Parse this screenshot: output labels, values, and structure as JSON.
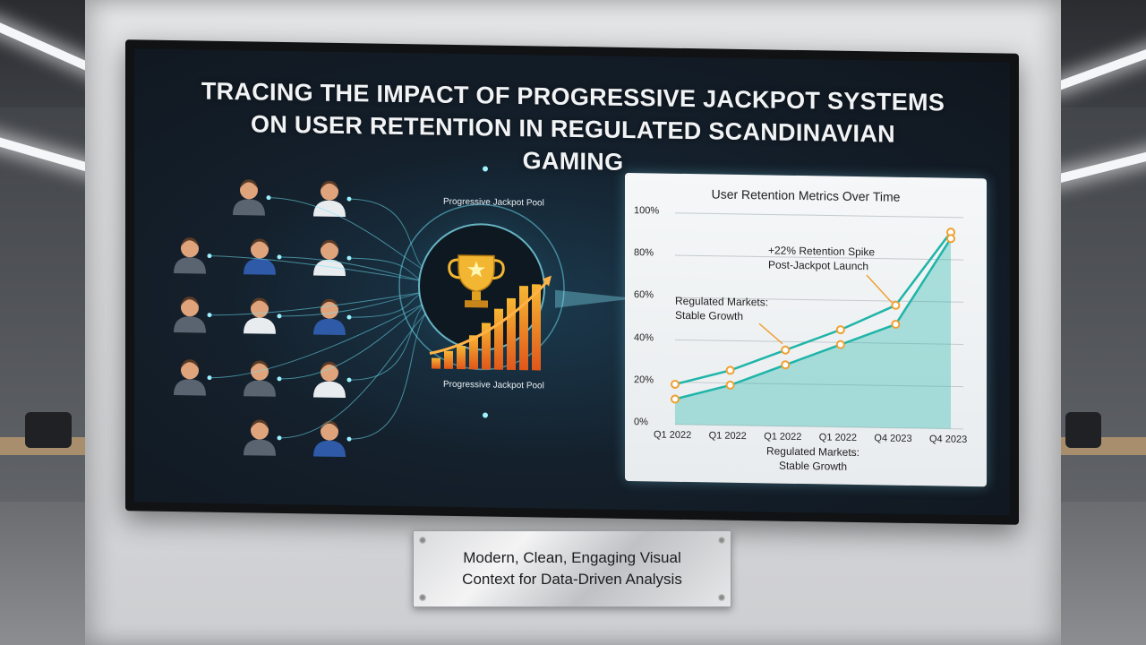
{
  "screen": {
    "title_line1": "TRACING THE IMPACT OF PROGRESSIVE JACKPOT SYSTEMS",
    "title_line2": "ON USER RETENTION IN REGULATED SCANDINAVIAN GAMING",
    "pool_label_top": "Progressive Jackpot Pool",
    "pool_label_bottom": "Progressive Jackpot Pool",
    "trophy_icon": "trophy-icon",
    "bars_icon": "rising-bars-icon",
    "user_icon": "user-avatar-icon"
  },
  "plaque": {
    "line1": "Modern, Clean, Engaging Visual",
    "line2": "Context for Data-Driven Analysis"
  },
  "colors": {
    "accent_teal": "#1fb5a8",
    "marker_orange": "#f0a030",
    "glow_cyan": "#6fe3f5"
  },
  "chart_data": {
    "type": "area",
    "title": "User Retention Metrics Over Time",
    "y_ticks": [
      "100%",
      "80%",
      "60%",
      "40%",
      "20%",
      "0%"
    ],
    "ylim": [
      0,
      100
    ],
    "x_tick_labels": [
      "Q1 2022",
      "Q1 2022",
      "Q1 2022",
      "Q1 2022",
      "Q4 2023",
      "Q4 2023"
    ],
    "x": [
      0,
      1,
      2,
      3,
      4,
      5
    ],
    "series": [
      {
        "values": [
          19,
          26,
          36,
          46,
          58,
          93
        ]
      },
      {
        "values": [
          12,
          19,
          29,
          39,
          49,
          90
        ]
      }
    ],
    "annotations": {
      "spike_line1": "+22% Retention Spike",
      "spike_line2": "Post-Jackpot Launch",
      "stable_line1": "Regulated Markets:",
      "stable_line2": "Stable Growth",
      "footer_line1": "Regulated Markets:",
      "footer_line2": "Stable Growth"
    },
    "grid": true
  }
}
